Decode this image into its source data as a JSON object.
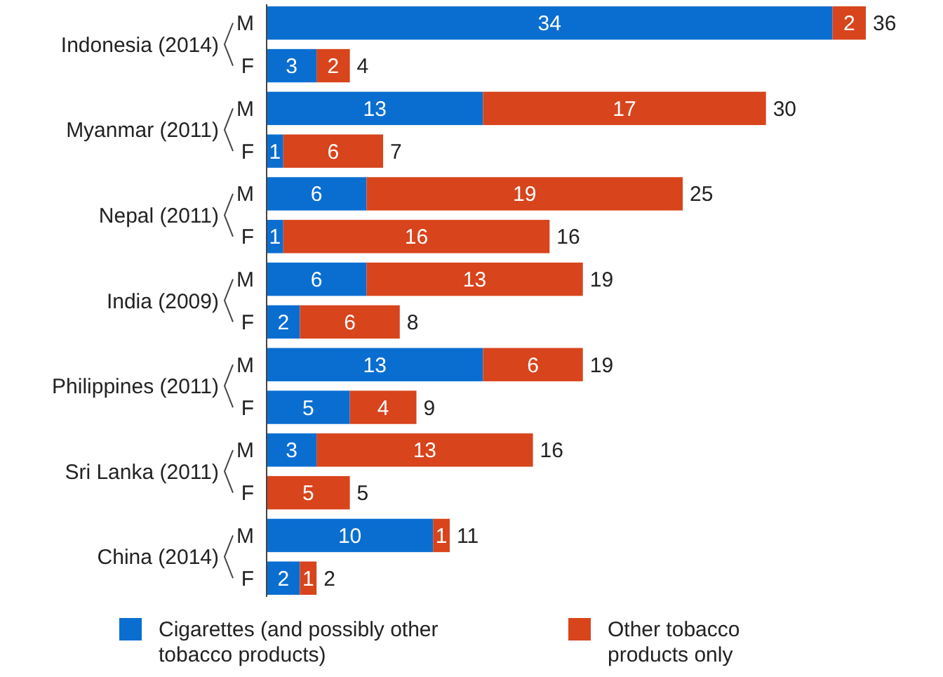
{
  "chart_data": {
    "type": "bar",
    "orientation": "horizontal",
    "stacked": true,
    "data_labels": true,
    "tick_labels": "y",
    "legend": "bottom",
    "categories": [
      "M",
      "F",
      "M",
      "F",
      "M",
      "F",
      "M",
      "F",
      "M",
      "F",
      "M",
      "F",
      "M",
      "F"
    ],
    "annotations": [
      "Indonesia (2014)",
      "Myanmar (2011)",
      "Nepal (2011)",
      "India (2009)",
      "Philippines (2011)",
      "Sri Lanka (2011)",
      "China (2014)"
    ],
    "series": [
      {
        "name": "Cigarettes (and possibly other tobacco products)",
        "color": "#0a6ed1",
        "values": [
          34,
          3,
          13,
          1,
          6,
          1,
          6,
          2,
          13,
          5,
          3,
          null,
          10,
          2
        ]
      },
      {
        "name": "Other tobacco products only",
        "color": "#d8441c",
        "values": [
          2,
          2,
          17,
          6,
          19,
          16,
          13,
          6,
          6,
          4,
          13,
          5,
          1,
          1
        ]
      }
    ],
    "totals": [
      "36",
      "4",
      "30",
      "7",
      "25",
      "16",
      "19",
      "8",
      "19",
      "9",
      "16",
      "5",
      "11",
      "2"
    ]
  }
}
